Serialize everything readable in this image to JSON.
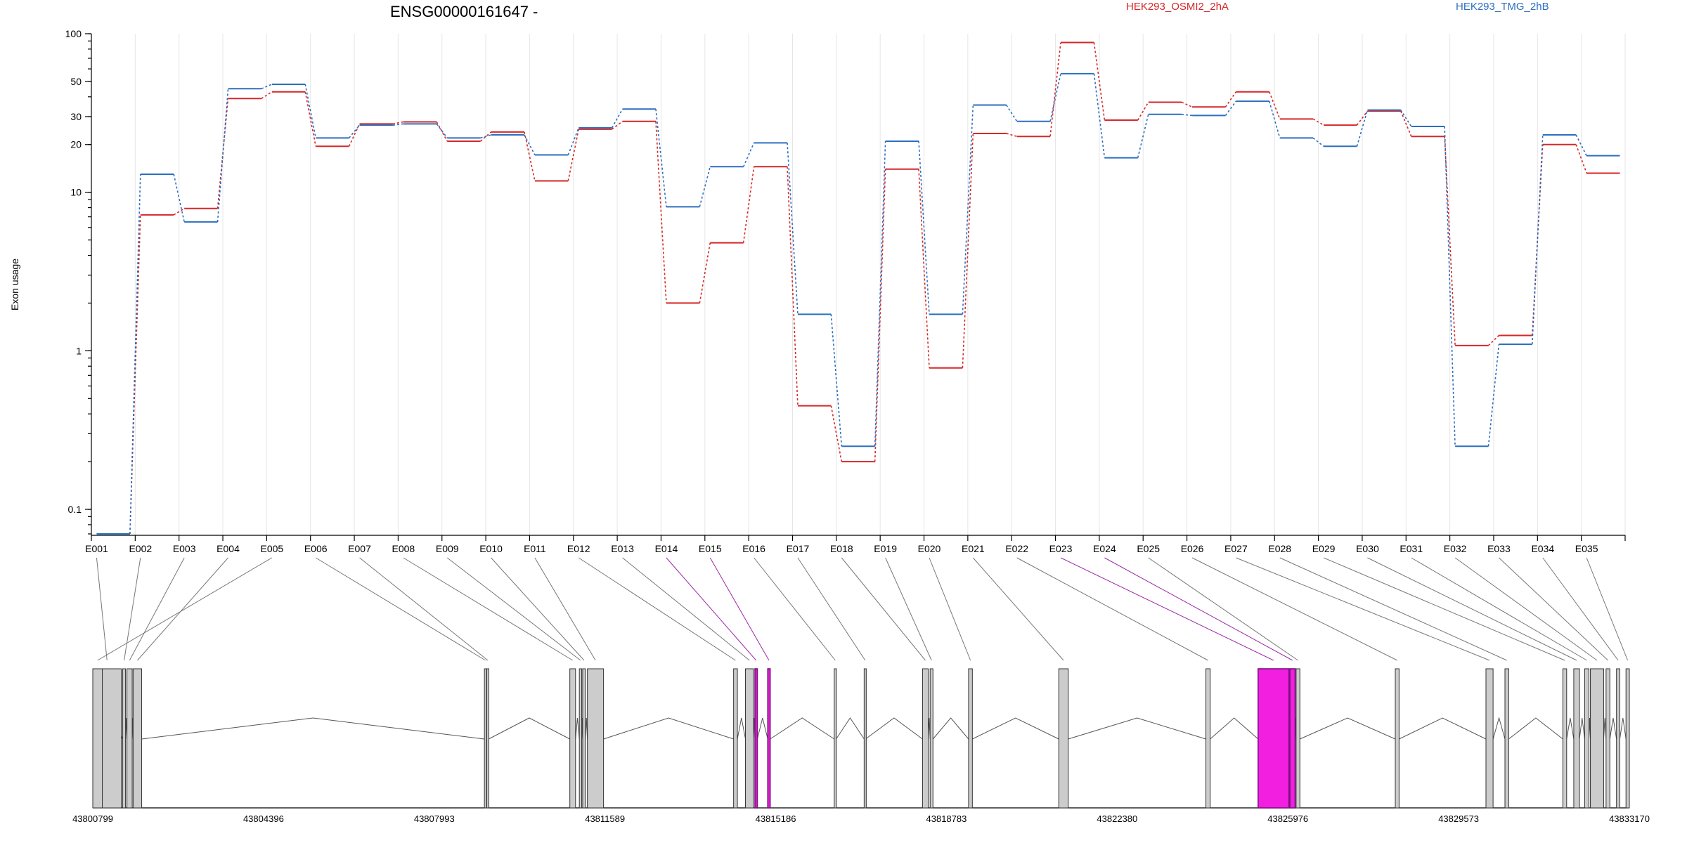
{
  "chart_data": {
    "type": "line",
    "title": "ENSG00000161647 -",
    "ylabel": "Exon usage",
    "xlabel": "",
    "y_scale": "log",
    "ylim": [
      0.07,
      100
    ],
    "yticks": [
      "0.1",
      "1",
      "10",
      "20",
      "30",
      "50",
      "100"
    ],
    "grid": true,
    "legend_placement": "top",
    "colors": {
      "HEK293_OSMI2_2hA": "#d62728",
      "HEK293_TMG_2hB": "#2c6fbf",
      "highlight": "#f21ee0",
      "exon_fill": "#cccccc"
    },
    "categories": [
      "E001",
      "E002",
      "E003",
      "E004",
      "E005",
      "E006",
      "E007",
      "E008",
      "E009",
      "E010",
      "E011",
      "E012",
      "E013",
      "E014",
      "E015",
      "E016",
      "E017",
      "E018",
      "E019",
      "E020",
      "E021",
      "E022",
      "E023",
      "E024",
      "E025",
      "E026",
      "E027",
      "E028",
      "E029",
      "E030",
      "E031",
      "E032",
      "E033",
      "E034",
      "E035"
    ],
    "highlighted_exons": [
      "E014",
      "E015",
      "E023",
      "E024"
    ],
    "series": [
      {
        "name": "HEK293_OSMI2_2hA",
        "values": [
          0.07,
          7.2,
          7.9,
          39,
          43,
          19.5,
          27,
          27.8,
          21,
          24,
          11.8,
          25,
          28,
          2.0,
          4.8,
          14.5,
          0.45,
          0.2,
          14,
          0.78,
          23.5,
          22.5,
          88,
          28.5,
          37,
          34.5,
          43,
          29,
          26.5,
          32.5,
          22.5,
          1.08,
          1.25,
          20,
          13.2
        ]
      },
      {
        "name": "HEK293_TMG_2hB",
        "values": [
          0.07,
          13,
          6.5,
          45,
          48,
          22,
          26.5,
          27,
          22,
          23,
          17.2,
          25.5,
          33.5,
          8.1,
          14.5,
          20.5,
          1.7,
          0.25,
          21,
          1.7,
          35.5,
          28,
          56,
          16.5,
          31,
          30.5,
          37.5,
          22,
          19.5,
          33,
          26,
          0.25,
          1.1,
          23,
          17
        ]
      }
    ],
    "gene_model": {
      "coordinates": [
        "43800799",
        "43804396",
        "43807993",
        "43811589",
        "43815186",
        "43818783",
        "43822380",
        "43825976",
        "43829573",
        "43833170"
      ],
      "range": [
        43800799,
        43833170
      ],
      "exons": [
        {
          "start": 43800799,
          "end": 43801399
        },
        {
          "start": 43801429,
          "end": 43801489
        },
        {
          "start": 43801519,
          "end": 43801629
        },
        {
          "start": 43801649,
          "end": 43801829
        },
        {
          "start": 43800799,
          "end": 43800999
        },
        {
          "start": 43809049,
          "end": 43809079
        },
        {
          "start": 43809099,
          "end": 43809139
        },
        {
          "start": 43810849,
          "end": 43810969
        },
        {
          "start": 43811049,
          "end": 43811099
        },
        {
          "start": 43811119,
          "end": 43811179
        },
        {
          "start": 43811219,
          "end": 43811559
        },
        {
          "start": 43814299,
          "end": 43814379
        },
        {
          "start": 43814549,
          "end": 43814719
        },
        {
          "start": 43814749,
          "end": 43814799
        },
        {
          "start": 43815019,
          "end": 43815069
        },
        {
          "start": 43816419,
          "end": 43816459
        },
        {
          "start": 43817049,
          "end": 43817079
        },
        {
          "start": 43818279,
          "end": 43818399
        },
        {
          "start": 43818439,
          "end": 43818499
        },
        {
          "start": 43819249,
          "end": 43819329
        },
        {
          "start": 43821149,
          "end": 43821349
        },
        {
          "start": 43824249,
          "end": 43824339
        },
        {
          "start": 43825349,
          "end": 43825999
        },
        {
          "start": 43826019,
          "end": 43826129
        },
        {
          "start": 43826149,
          "end": 43826229
        },
        {
          "start": 43828239,
          "end": 43828319
        },
        {
          "start": 43830149,
          "end": 43830299
        },
        {
          "start": 43830549,
          "end": 43830629
        },
        {
          "start": 43831769,
          "end": 43831849
        },
        {
          "start": 43831999,
          "end": 43832119
        },
        {
          "start": 43832229,
          "end": 43832319
        },
        {
          "start": 43832349,
          "end": 43832629
        },
        {
          "start": 43832679,
          "end": 43832759
        },
        {
          "start": 43832899,
          "end": 43832969
        },
        {
          "start": 43833099,
          "end": 43833170
        }
      ]
    }
  }
}
